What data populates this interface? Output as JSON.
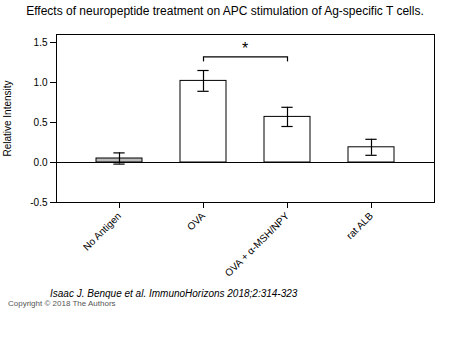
{
  "chart_data": {
    "type": "bar",
    "title": "Effects of neuropeptide treatment on APC stimulation of Ag-specific T cells.",
    "ylabel": "Relative Intensity",
    "categories": [
      "No Antigen",
      "OVA",
      "OVA + α-MSH/NPY",
      "rat ALB"
    ],
    "values": [
      0.05,
      1.02,
      0.57,
      0.19
    ],
    "errors": [
      0.07,
      0.13,
      0.12,
      0.1
    ],
    "colors": [
      "#bbbbbb",
      "#ffffff",
      "#ffffff",
      "#ffffff"
    ],
    "ylim": [
      -0.5,
      1.6
    ],
    "yticks": [
      -0.5,
      {
        "value": 0.0,
        "label": "0.0"
      },
      0.5,
      {
        "value": 1.0,
        "label": "1.0"
      },
      1.5
    ],
    "annotations": [
      {
        "text": "*",
        "x1": "OVA",
        "x2": "OVA + α-MSH/NPY",
        "y": 1.32
      }
    ],
    "citation": "Isaac J. Benque et al. ImmunoHorizons 2018;2:314-323",
    "copyright": "Copyright © 2018 The Authors"
  }
}
